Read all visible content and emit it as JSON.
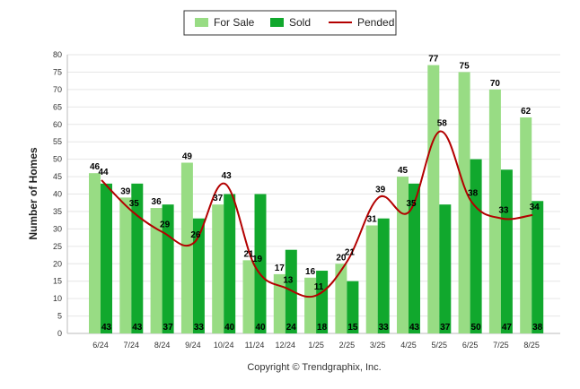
{
  "chart_data": {
    "type": "bar",
    "categories": [
      "6/24",
      "7/24",
      "8/24",
      "9/24",
      "10/24",
      "11/24",
      "12/24",
      "1/25",
      "2/25",
      "3/25",
      "4/25",
      "5/25",
      "6/25",
      "7/25",
      "8/25"
    ],
    "series": [
      {
        "name": "For Sale",
        "kind": "bar",
        "color": "#98dc84",
        "values": [
          46,
          39,
          36,
          49,
          37,
          21,
          17,
          16,
          20,
          31,
          45,
          77,
          75,
          70,
          62
        ]
      },
      {
        "name": "Sold",
        "kind": "bar",
        "color": "#11a82d",
        "values": [
          43,
          43,
          37,
          33,
          40,
          40,
          24,
          18,
          15,
          33,
          43,
          37,
          50,
          47,
          38
        ]
      },
      {
        "name": "Pended",
        "kind": "line",
        "color": "#b30000",
        "values": [
          44,
          35,
          29,
          26,
          43,
          19,
          13,
          11,
          21,
          39,
          35,
          58,
          38,
          33,
          34
        ]
      }
    ],
    "title": "",
    "xlabel": "",
    "ylabel": "Number of Homes",
    "ylim": [
      0,
      80
    ],
    "yticks": [
      0,
      5,
      10,
      15,
      20,
      25,
      30,
      35,
      40,
      45,
      50,
      55,
      60,
      65,
      70,
      75,
      80
    ],
    "grid": true,
    "legend_position": "top-center"
  },
  "footer": {
    "copyright": "Copyright © Trendgraphix, Inc."
  }
}
